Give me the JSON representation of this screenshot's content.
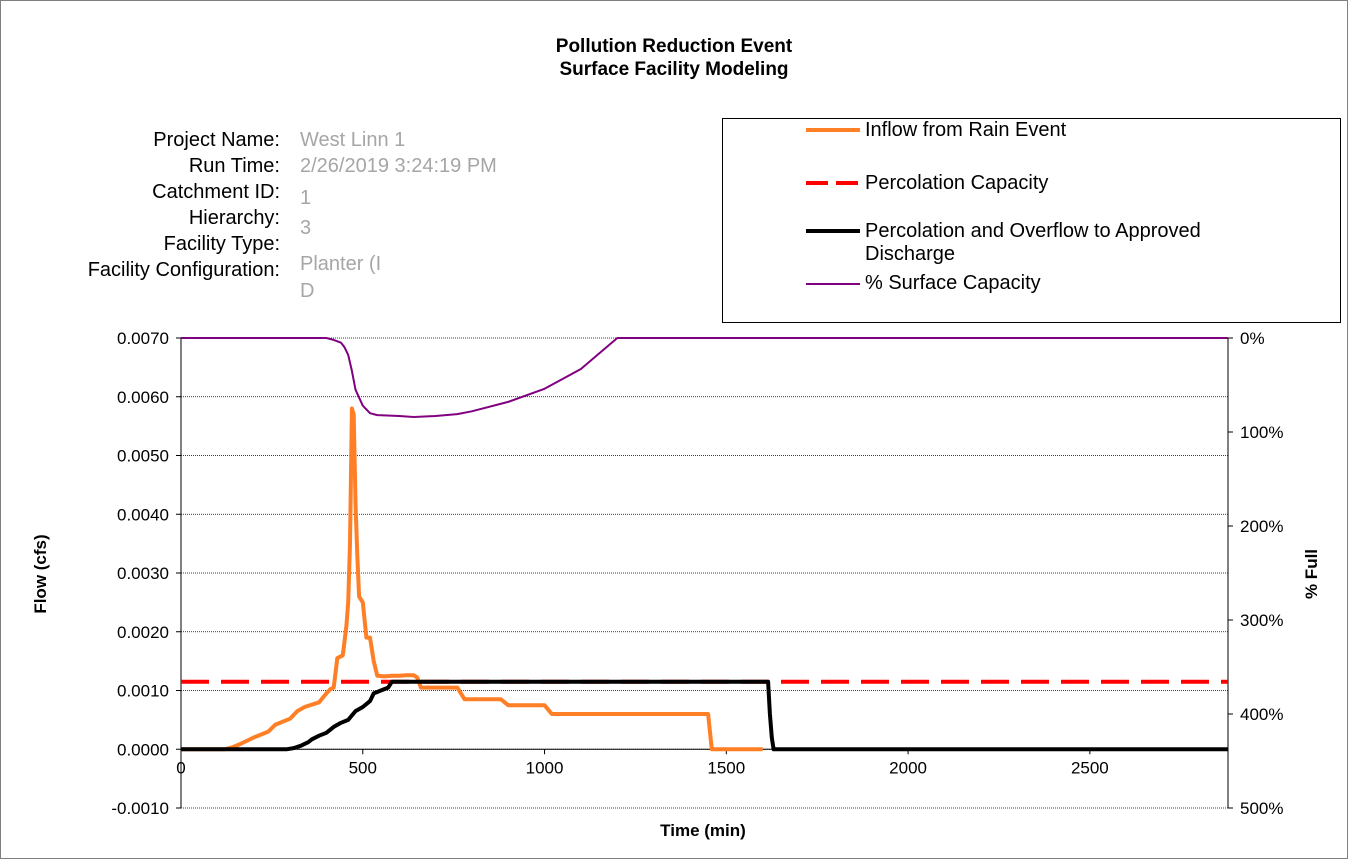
{
  "chart_data": {
    "type": "line",
    "title": "Pollution Reduction Event",
    "subtitle": "Surface Facility Modeling",
    "xlabel": "Time (min)",
    "ylabel": "Flow (cfs)",
    "y2label": "% Full",
    "xlim": [
      0,
      2880
    ],
    "ylim": [
      -0.001,
      0.007
    ],
    "y2lim": [
      0,
      500
    ],
    "y2_reversed": true,
    "grid": "horizontal",
    "legend_position": "top-right",
    "x_ticks": [
      0,
      500,
      1000,
      1500,
      2000,
      2500
    ],
    "x_tick_labels": [
      "0",
      "500",
      "1000",
      "1500",
      "2000",
      "2500"
    ],
    "y_ticks": [
      0.007,
      0.006,
      0.005,
      0.004,
      0.003,
      0.002,
      0.001,
      0.0,
      -0.001
    ],
    "y_tick_labels": [
      "0.0070",
      "0.0060",
      "0.0050",
      "0.0040",
      "0.0030",
      "0.0020",
      "0.0010",
      "0.0000",
      "-0.0010"
    ],
    "y2_ticks": [
      0,
      100,
      200,
      300,
      400,
      500
    ],
    "y2_tick_labels": [
      "0%",
      "100%",
      "200%",
      "300%",
      "400%",
      "500%"
    ],
    "series": [
      {
        "name": "Inflow from Rain Event",
        "color": "#ff7f27",
        "style": "solid-thick",
        "axis": "left",
        "x": [
          0,
          120,
          140,
          160,
          200,
          240,
          260,
          300,
          320,
          340,
          380,
          400,
          410,
          420,
          430,
          445,
          455,
          460,
          465,
          470,
          475,
          480,
          485,
          490,
          500,
          510,
          520,
          530,
          540,
          560,
          580,
          600,
          620,
          640,
          650,
          660,
          700,
          730,
          760,
          780,
          800,
          880,
          900,
          1000,
          1020,
          1440,
          1450,
          1460,
          1600
        ],
        "y": [
          0.0,
          0.0,
          3e-05,
          8e-05,
          0.0002,
          0.0003,
          0.00042,
          0.00052,
          0.00065,
          0.00072,
          0.0008,
          0.00095,
          0.00102,
          0.00105,
          0.00155,
          0.0016,
          0.0021,
          0.0025,
          0.0035,
          0.0058,
          0.0057,
          0.0042,
          0.0033,
          0.0026,
          0.0025,
          0.0019,
          0.0019,
          0.0015,
          0.00125,
          0.00124,
          0.00125,
          0.00125,
          0.00126,
          0.00126,
          0.00122,
          0.00105,
          0.00105,
          0.00105,
          0.00105,
          0.00085,
          0.00085,
          0.00085,
          0.00075,
          0.00075,
          0.0006,
          0.0006,
          0.0006,
          0.0,
          0.0
        ]
      },
      {
        "name": "Percolation Capacity",
        "color": "#ff0000",
        "style": "dashed-thick",
        "axis": "left",
        "x": [
          0,
          2880
        ],
        "y": [
          0.00115,
          0.00115
        ]
      },
      {
        "name": "Percolation and Overflow to Approved Discharge",
        "color": "#000000",
        "style": "solid-thick",
        "axis": "left",
        "x": [
          0,
          290,
          310,
          330,
          350,
          360,
          380,
          400,
          420,
          440,
          460,
          480,
          500,
          520,
          530,
          550,
          570,
          580,
          600,
          1615,
          1620,
          1625,
          1630,
          2880
        ],
        "y": [
          0.0,
          0.0,
          2e-05,
          6e-05,
          0.00012,
          0.00017,
          0.00023,
          0.00028,
          0.00038,
          0.00045,
          0.0005,
          0.00065,
          0.00072,
          0.00082,
          0.00095,
          0.001,
          0.00105,
          0.00115,
          0.00115,
          0.00115,
          0.0006,
          0.0002,
          0.0,
          0.0
        ]
      },
      {
        "name": "% Surface Capacity",
        "color": "#800080",
        "style": "solid-thin",
        "axis": "right",
        "x": [
          0,
          400,
          420,
          440,
          450,
          460,
          470,
          480,
          500,
          520,
          540,
          600,
          640,
          700,
          760,
          800,
          900,
          1000,
          1100,
          1200,
          2880
        ],
        "y": [
          0,
          0,
          2,
          5,
          10,
          18,
          35,
          55,
          72,
          80,
          82,
          83,
          84,
          83,
          81,
          78,
          68,
          54,
          33,
          0,
          0
        ]
      }
    ]
  },
  "info": {
    "labels": [
      "Project Name:",
      "Run Time:",
      "Catchment ID:",
      "Hierarchy:",
      "Facility Type:",
      "Facility Configuration:"
    ],
    "values": [
      "West Linn 1",
      "2/26/2019 3:24:19 PM",
      "1",
      "3",
      "Planter (I",
      "D"
    ]
  }
}
